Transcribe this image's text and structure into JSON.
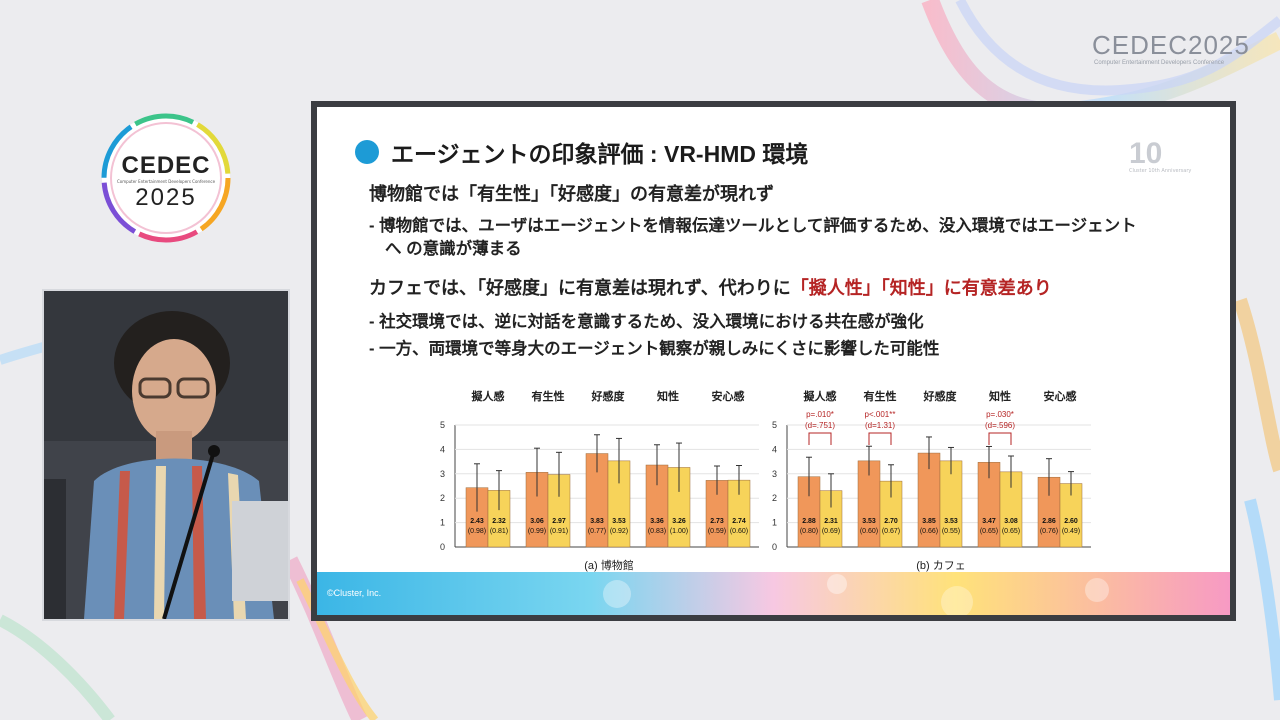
{
  "branding": {
    "top_title": "CEDEC2025",
    "top_subtitle": "Computer Entertainment Developers Conference",
    "badge_title": "CEDEC",
    "badge_subtitle": "Computer Entertainment Developers Conference",
    "badge_year": "2025"
  },
  "slide": {
    "title": "エージェントの印象評価 : VR-HMD 環境",
    "anniversary": {
      "number": "10",
      "subtitle": "Cluster 10th Anniversary"
    },
    "section1": {
      "heading": "博物館では「有生性」「好感度」の有意差が現れず",
      "bullets": [
        "-  博物館では、ユーザはエージェントを情報伝達ツールとして評価するため、没入環境ではエージェント",
        "へ の意識が薄まる"
      ]
    },
    "section2": {
      "heading_prefix": "カフェでは、「好感度」に有意差は現れず、代わりに",
      "heading_highlight": "「擬人性」「知性」に有意差あり",
      "bullets": [
        "-  社交環境では、逆に対話を意識するため、没入環境における共在感が強化",
        "-  一方、両環境で等身大のエージェント観察が親しみにくさに影響した可能性"
      ]
    },
    "footer": "©Cluster, Inc.",
    "colors": {
      "bar_a": "#f0975a",
      "bar_b": "#f7d35a",
      "accent": "#1d9bd6",
      "highlight": "#b52424"
    }
  },
  "chart_data": [
    {
      "type": "bar",
      "title": "(a) 博物館",
      "categories": [
        "擬人感",
        "有生性",
        "好感度",
        "知性",
        "安心感"
      ],
      "ylim": [
        0,
        5
      ],
      "yticks": [
        "0",
        "1",
        "2",
        "3",
        "4",
        "5"
      ],
      "series": [
        {
          "values": [
            2.43,
            3.06,
            3.83,
            3.36,
            2.73
          ],
          "sd": [
            0.98,
            0.99,
            0.77,
            0.83,
            0.59
          ]
        },
        {
          "values": [
            2.32,
            2.97,
            3.53,
            3.26,
            2.74
          ],
          "sd": [
            0.81,
            0.91,
            0.92,
            1.0,
            0.6
          ]
        }
      ],
      "value_labels": [
        [
          "2.43",
          "3.06",
          "3.83",
          "3.36",
          "2.73"
        ],
        [
          "2.32",
          "2.97",
          "3.53",
          "3.26",
          "2.74"
        ]
      ],
      "sd_labels": [
        [
          "(0.98)",
          "(0.99)",
          "(0.77)",
          "(0.83)",
          "(0.59)"
        ],
        [
          "(0.81)",
          "(0.91)",
          "(0.92)",
          "(1.00)",
          "(0.60)"
        ]
      ],
      "annotations": []
    },
    {
      "type": "bar",
      "title": "(b) カフェ",
      "categories": [
        "擬人感",
        "有生性",
        "好感度",
        "知性",
        "安心感"
      ],
      "ylim": [
        0,
        5
      ],
      "yticks": [
        "0",
        "1",
        "2",
        "3",
        "4",
        "5"
      ],
      "series": [
        {
          "values": [
            2.88,
            3.53,
            3.85,
            3.47,
            2.86
          ],
          "sd": [
            0.8,
            0.6,
            0.66,
            0.65,
            0.76
          ]
        },
        {
          "values": [
            2.31,
            2.7,
            3.53,
            3.08,
            2.6
          ],
          "sd": [
            0.69,
            0.67,
            0.55,
            0.65,
            0.49
          ]
        }
      ],
      "value_labels": [
        [
          "2.88",
          "3.53",
          "3.85",
          "3.47",
          "2.86"
        ],
        [
          "2.31",
          "2.70",
          "3.53",
          "3.08",
          "2.60"
        ]
      ],
      "sd_labels": [
        [
          "(0.80)",
          "(0.60)",
          "(0.66)",
          "(0.65)",
          "(0.76)"
        ],
        [
          "(0.69)",
          "(0.67)",
          "(0.55)",
          "(0.65)",
          "(0.49)"
        ]
      ],
      "annotations": [
        {
          "category_index": 0,
          "p": "p=.010*",
          "d": "(d=.751)"
        },
        {
          "category_index": 1,
          "p": "p<.001**",
          "d": "(d=1.31)"
        },
        {
          "category_index": 3,
          "p": "p=.030*",
          "d": "(d=.596)"
        }
      ]
    }
  ]
}
